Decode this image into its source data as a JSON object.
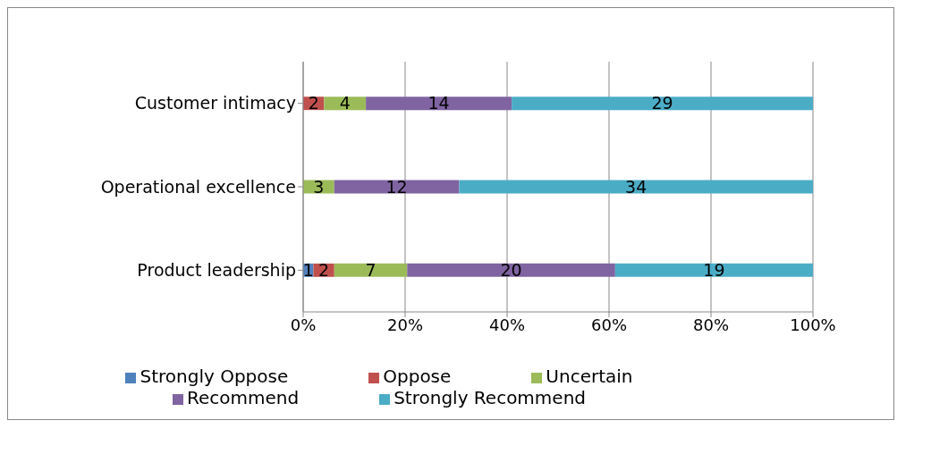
{
  "chart_data": {
    "type": "bar",
    "orientation": "horizontal",
    "stacked": true,
    "categories": [
      "Customer intimacy",
      "Operational excellence",
      "Product leadership"
    ],
    "series": [
      {
        "name": "Strongly Oppose",
        "color": "#4f81bd",
        "values": [
          null,
          null,
          2.0
        ]
      },
      {
        "name": "Oppose",
        "color": "#c0504d",
        "values": [
          4.1,
          null,
          4.1
        ]
      },
      {
        "name": "Uncertain",
        "color": "#9bbb59",
        "values": [
          8.2,
          6.1,
          14.3
        ]
      },
      {
        "name": "Recommend",
        "color": "#8064a2",
        "values": [
          28.6,
          24.5,
          40.8
        ]
      },
      {
        "name": "Strongly Recommend",
        "color": "#4bacc6",
        "values": [
          59.1,
          69.4,
          38.8
        ]
      }
    ],
    "annotations": [
      "2",
      "4",
      "14",
      "29",
      "3",
      "12",
      "34",
      "1",
      "2",
      "7",
      "20",
      "19"
    ],
    "xlim": [
      0,
      100
    ],
    "xticks": [
      {
        "value": 0,
        "label": "0%"
      },
      {
        "value": 20,
        "label": "20%"
      },
      {
        "value": 40,
        "label": "40%"
      },
      {
        "value": 60,
        "label": "60%"
      },
      {
        "value": 80,
        "label": "80%"
      },
      {
        "value": 100,
        "label": "100%"
      }
    ],
    "grid": "x",
    "legend": "bottom"
  }
}
